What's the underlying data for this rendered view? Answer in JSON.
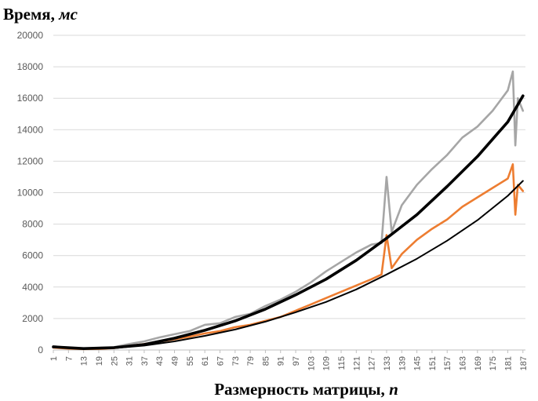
{
  "chart_data": {
    "type": "line",
    "ylabel_text": "Время, ",
    "ylabel_unit": "мс",
    "xlabel_text": "Размерность матрицы, ",
    "xlabel_unit": "n",
    "ylim": [
      0,
      20000
    ],
    "yticks": [
      0,
      2000,
      4000,
      6000,
      8000,
      10000,
      12000,
      14000,
      16000,
      18000,
      20000
    ],
    "xlim": [
      1,
      188
    ],
    "xticks": [
      1,
      7,
      13,
      19,
      25,
      31,
      37,
      43,
      49,
      55,
      61,
      67,
      73,
      79,
      85,
      91,
      97,
      103,
      109,
      115,
      121,
      127,
      133,
      139,
      145,
      151,
      157,
      163,
      169,
      175,
      181,
      187
    ],
    "grid": "horizontal",
    "legend": "none",
    "colors": {
      "gray": "#a6a6a6",
      "orange": "#ed7d31",
      "trend_gray": "#000000",
      "trend_orange": "#000000",
      "grid": "#d9d9d9",
      "tick_text": "#595959"
    },
    "series": [
      {
        "key": "gray",
        "x": [
          1,
          7,
          13,
          19,
          25,
          31,
          37,
          43,
          49,
          55,
          61,
          67,
          73,
          79,
          85,
          91,
          97,
          103,
          109,
          115,
          121,
          127,
          131,
          133,
          135,
          139,
          145,
          151,
          157,
          163,
          169,
          175,
          181,
          183,
          184,
          185,
          187
        ],
        "y": [
          250,
          120,
          80,
          100,
          180,
          380,
          550,
          800,
          1000,
          1200,
          1600,
          1700,
          2100,
          2300,
          2800,
          3200,
          3700,
          4300,
          5000,
          5600,
          6200,
          6700,
          6800,
          11000,
          7500,
          9200,
          10500,
          11500,
          12400,
          13500,
          14200,
          15200,
          16500,
          17700,
          13000,
          16000,
          15200
        ]
      },
      {
        "key": "orange",
        "x": [
          1,
          7,
          13,
          19,
          25,
          31,
          37,
          43,
          49,
          55,
          61,
          67,
          73,
          79,
          85,
          91,
          97,
          103,
          109,
          115,
          121,
          127,
          131,
          133,
          135,
          139,
          145,
          151,
          157,
          163,
          169,
          175,
          181,
          183,
          184,
          185,
          187
        ],
        "y": [
          150,
          90,
          60,
          70,
          120,
          260,
          380,
          530,
          680,
          850,
          1050,
          1200,
          1450,
          1600,
          1850,
          2100,
          2500,
          2900,
          3300,
          3700,
          4100,
          4500,
          4800,
          7300,
          5200,
          6100,
          7000,
          7700,
          8300,
          9100,
          9700,
          10300,
          10900,
          11800,
          8600,
          10500,
          10100
        ]
      },
      {
        "key": "trend_gray",
        "x": [
          1,
          13,
          25,
          37,
          49,
          61,
          73,
          85,
          97,
          109,
          121,
          133,
          145,
          157,
          169,
          181,
          187
        ],
        "y": [
          200,
          90,
          150,
          350,
          750,
          1250,
          1850,
          2600,
          3500,
          4500,
          5700,
          7100,
          8600,
          10400,
          12300,
          14500,
          16150
        ]
      },
      {
        "key": "trend_orange",
        "x": [
          1,
          13,
          25,
          37,
          49,
          61,
          73,
          85,
          97,
          109,
          121,
          133,
          145,
          157,
          169,
          181,
          187
        ],
        "y": [
          180,
          80,
          120,
          280,
          550,
          900,
          1300,
          1800,
          2400,
          3050,
          3850,
          4800,
          5800,
          6950,
          8250,
          9800,
          10750
        ]
      }
    ]
  }
}
